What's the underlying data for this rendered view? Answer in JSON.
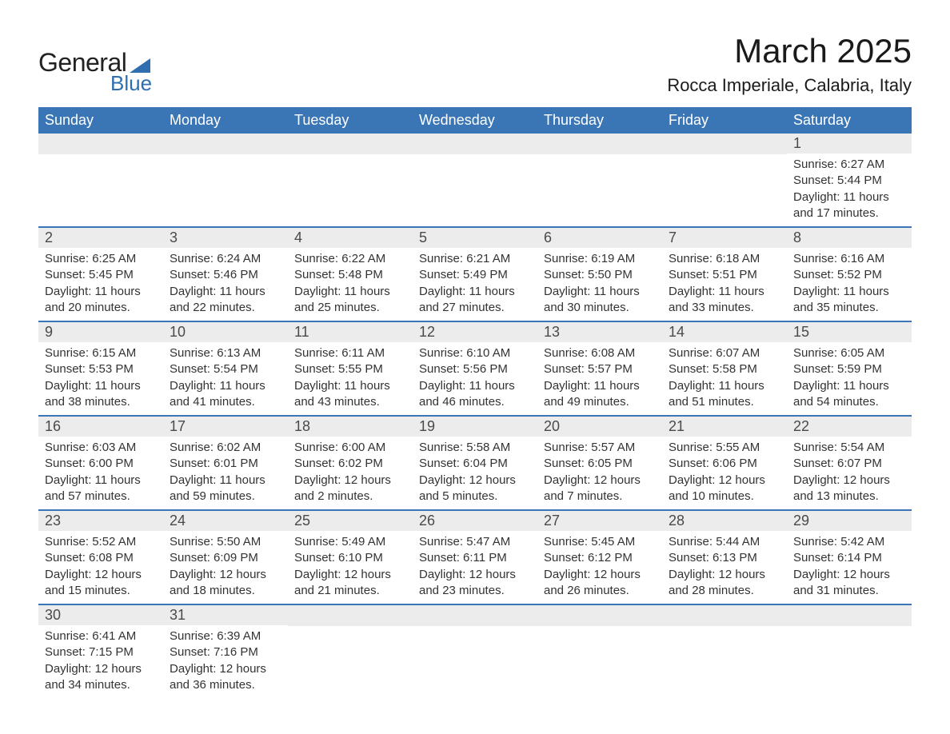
{
  "logo": {
    "text_general": "General",
    "text_blue": "Blue",
    "accent_color": "#2f6fb0"
  },
  "header": {
    "month_title": "March 2025",
    "location": "Rocca Imperiale, Calabria, Italy"
  },
  "colors": {
    "header_bg": "#3a76b5",
    "header_text": "#ffffff",
    "daynum_bg": "#ececec",
    "daynum_text": "#4a4a4a",
    "body_text": "#333333",
    "row_divider": "#3a76b5",
    "page_bg": "#ffffff"
  },
  "fonts": {
    "title_size_pt": 32,
    "location_size_pt": 17,
    "dow_size_pt": 14,
    "body_size_pt": 11
  },
  "days_of_week": [
    "Sunday",
    "Monday",
    "Tuesday",
    "Wednesday",
    "Thursday",
    "Friday",
    "Saturday"
  ],
  "weeks": [
    [
      {
        "blank": true
      },
      {
        "blank": true
      },
      {
        "blank": true
      },
      {
        "blank": true
      },
      {
        "blank": true
      },
      {
        "blank": true
      },
      {
        "num": "1",
        "sunrise": "Sunrise: 6:27 AM",
        "sunset": "Sunset: 5:44 PM",
        "day1": "Daylight: 11 hours",
        "day2": "and 17 minutes."
      }
    ],
    [
      {
        "num": "2",
        "sunrise": "Sunrise: 6:25 AM",
        "sunset": "Sunset: 5:45 PM",
        "day1": "Daylight: 11 hours",
        "day2": "and 20 minutes."
      },
      {
        "num": "3",
        "sunrise": "Sunrise: 6:24 AM",
        "sunset": "Sunset: 5:46 PM",
        "day1": "Daylight: 11 hours",
        "day2": "and 22 minutes."
      },
      {
        "num": "4",
        "sunrise": "Sunrise: 6:22 AM",
        "sunset": "Sunset: 5:48 PM",
        "day1": "Daylight: 11 hours",
        "day2": "and 25 minutes."
      },
      {
        "num": "5",
        "sunrise": "Sunrise: 6:21 AM",
        "sunset": "Sunset: 5:49 PM",
        "day1": "Daylight: 11 hours",
        "day2": "and 27 minutes."
      },
      {
        "num": "6",
        "sunrise": "Sunrise: 6:19 AM",
        "sunset": "Sunset: 5:50 PM",
        "day1": "Daylight: 11 hours",
        "day2": "and 30 minutes."
      },
      {
        "num": "7",
        "sunrise": "Sunrise: 6:18 AM",
        "sunset": "Sunset: 5:51 PM",
        "day1": "Daylight: 11 hours",
        "day2": "and 33 minutes."
      },
      {
        "num": "8",
        "sunrise": "Sunrise: 6:16 AM",
        "sunset": "Sunset: 5:52 PM",
        "day1": "Daylight: 11 hours",
        "day2": "and 35 minutes."
      }
    ],
    [
      {
        "num": "9",
        "sunrise": "Sunrise: 6:15 AM",
        "sunset": "Sunset: 5:53 PM",
        "day1": "Daylight: 11 hours",
        "day2": "and 38 minutes."
      },
      {
        "num": "10",
        "sunrise": "Sunrise: 6:13 AM",
        "sunset": "Sunset: 5:54 PM",
        "day1": "Daylight: 11 hours",
        "day2": "and 41 minutes."
      },
      {
        "num": "11",
        "sunrise": "Sunrise: 6:11 AM",
        "sunset": "Sunset: 5:55 PM",
        "day1": "Daylight: 11 hours",
        "day2": "and 43 minutes."
      },
      {
        "num": "12",
        "sunrise": "Sunrise: 6:10 AM",
        "sunset": "Sunset: 5:56 PM",
        "day1": "Daylight: 11 hours",
        "day2": "and 46 minutes."
      },
      {
        "num": "13",
        "sunrise": "Sunrise: 6:08 AM",
        "sunset": "Sunset: 5:57 PM",
        "day1": "Daylight: 11 hours",
        "day2": "and 49 minutes."
      },
      {
        "num": "14",
        "sunrise": "Sunrise: 6:07 AM",
        "sunset": "Sunset: 5:58 PM",
        "day1": "Daylight: 11 hours",
        "day2": "and 51 minutes."
      },
      {
        "num": "15",
        "sunrise": "Sunrise: 6:05 AM",
        "sunset": "Sunset: 5:59 PM",
        "day1": "Daylight: 11 hours",
        "day2": "and 54 minutes."
      }
    ],
    [
      {
        "num": "16",
        "sunrise": "Sunrise: 6:03 AM",
        "sunset": "Sunset: 6:00 PM",
        "day1": "Daylight: 11 hours",
        "day2": "and 57 minutes."
      },
      {
        "num": "17",
        "sunrise": "Sunrise: 6:02 AM",
        "sunset": "Sunset: 6:01 PM",
        "day1": "Daylight: 11 hours",
        "day2": "and 59 minutes."
      },
      {
        "num": "18",
        "sunrise": "Sunrise: 6:00 AM",
        "sunset": "Sunset: 6:02 PM",
        "day1": "Daylight: 12 hours",
        "day2": "and 2 minutes."
      },
      {
        "num": "19",
        "sunrise": "Sunrise: 5:58 AM",
        "sunset": "Sunset: 6:04 PM",
        "day1": "Daylight: 12 hours",
        "day2": "and 5 minutes."
      },
      {
        "num": "20",
        "sunrise": "Sunrise: 5:57 AM",
        "sunset": "Sunset: 6:05 PM",
        "day1": "Daylight: 12 hours",
        "day2": "and 7 minutes."
      },
      {
        "num": "21",
        "sunrise": "Sunrise: 5:55 AM",
        "sunset": "Sunset: 6:06 PM",
        "day1": "Daylight: 12 hours",
        "day2": "and 10 minutes."
      },
      {
        "num": "22",
        "sunrise": "Sunrise: 5:54 AM",
        "sunset": "Sunset: 6:07 PM",
        "day1": "Daylight: 12 hours",
        "day2": "and 13 minutes."
      }
    ],
    [
      {
        "num": "23",
        "sunrise": "Sunrise: 5:52 AM",
        "sunset": "Sunset: 6:08 PM",
        "day1": "Daylight: 12 hours",
        "day2": "and 15 minutes."
      },
      {
        "num": "24",
        "sunrise": "Sunrise: 5:50 AM",
        "sunset": "Sunset: 6:09 PM",
        "day1": "Daylight: 12 hours",
        "day2": "and 18 minutes."
      },
      {
        "num": "25",
        "sunrise": "Sunrise: 5:49 AM",
        "sunset": "Sunset: 6:10 PM",
        "day1": "Daylight: 12 hours",
        "day2": "and 21 minutes."
      },
      {
        "num": "26",
        "sunrise": "Sunrise: 5:47 AM",
        "sunset": "Sunset: 6:11 PM",
        "day1": "Daylight: 12 hours",
        "day2": "and 23 minutes."
      },
      {
        "num": "27",
        "sunrise": "Sunrise: 5:45 AM",
        "sunset": "Sunset: 6:12 PM",
        "day1": "Daylight: 12 hours",
        "day2": "and 26 minutes."
      },
      {
        "num": "28",
        "sunrise": "Sunrise: 5:44 AM",
        "sunset": "Sunset: 6:13 PM",
        "day1": "Daylight: 12 hours",
        "day2": "and 28 minutes."
      },
      {
        "num": "29",
        "sunrise": "Sunrise: 5:42 AM",
        "sunset": "Sunset: 6:14 PM",
        "day1": "Daylight: 12 hours",
        "day2": "and 31 minutes."
      }
    ],
    [
      {
        "num": "30",
        "sunrise": "Sunrise: 6:41 AM",
        "sunset": "Sunset: 7:15 PM",
        "day1": "Daylight: 12 hours",
        "day2": "and 34 minutes."
      },
      {
        "num": "31",
        "sunrise": "Sunrise: 6:39 AM",
        "sunset": "Sunset: 7:16 PM",
        "day1": "Daylight: 12 hours",
        "day2": "and 36 minutes."
      },
      {
        "blank": true
      },
      {
        "blank": true
      },
      {
        "blank": true
      },
      {
        "blank": true
      },
      {
        "blank": true
      }
    ]
  ]
}
